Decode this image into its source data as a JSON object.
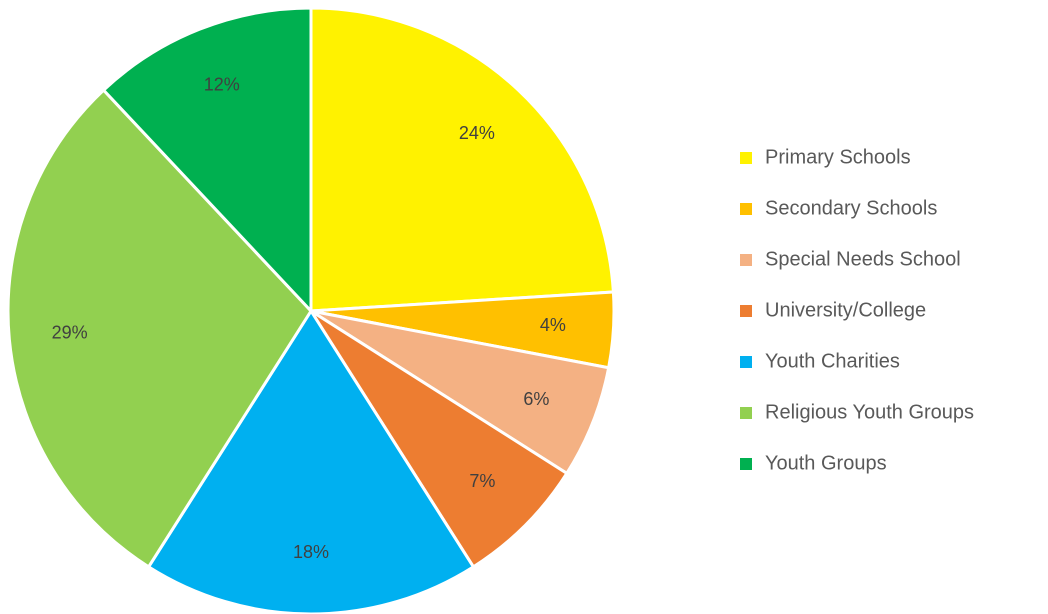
{
  "chart_data": {
    "type": "pie",
    "categories": [
      "Primary Schools",
      "Secondary Schools",
      "Special Needs School",
      "University/College",
      "Youth Charities",
      "Religious Youth Groups",
      "Youth Groups"
    ],
    "values": [
      24,
      4,
      6,
      7,
      18,
      29,
      12
    ],
    "value_labels": [
      "24%",
      "4%",
      "6%",
      "7%",
      "18%",
      "29%",
      "12%"
    ],
    "colors": [
      "#fff200",
      "#ffc000",
      "#f4b183",
      "#ed7d31",
      "#00b0f0",
      "#92d050",
      "#00b050"
    ],
    "legend": "right"
  }
}
